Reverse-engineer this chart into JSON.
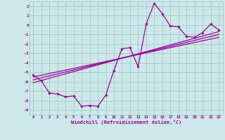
{
  "bg_color": "#cce8e8",
  "grid_color": "#aacccc",
  "line_color": "#990099",
  "marker_color": "#990099",
  "xlabel": "Windchill (Refroidissement éolien,°C)",
  "xlim": [
    -0.5,
    23.5
  ],
  "ylim": [
    -9.5,
    2.5
  ],
  "yticks": [
    2,
    1,
    0,
    -1,
    -2,
    -3,
    -4,
    -5,
    -6,
    -7,
    -8,
    -9
  ],
  "xticks": [
    0,
    1,
    2,
    3,
    4,
    5,
    6,
    7,
    8,
    9,
    10,
    11,
    12,
    13,
    14,
    15,
    16,
    17,
    18,
    19,
    20,
    21,
    22,
    23
  ],
  "data_line1_x": [
    0,
    1,
    2,
    3,
    4,
    5,
    6,
    7,
    8,
    9,
    10,
    11,
    12,
    13,
    14,
    15,
    16,
    17,
    18,
    19,
    20,
    21,
    22,
    23
  ],
  "data_line1_y": [
    -5.3,
    -5.9,
    -7.2,
    -7.3,
    -7.6,
    -7.5,
    -8.6,
    -8.5,
    -8.6,
    -7.4,
    -4.8,
    -2.5,
    -2.4,
    -4.4,
    0.1,
    2.3,
    1.2,
    -0.1,
    -0.2,
    -1.2,
    -1.3,
    -0.8,
    0.1,
    -0.5
  ],
  "data_line2_x": [
    0,
    23
  ],
  "data_line2_y": [
    -5.5,
    -1.3
  ],
  "data_line3_x": [
    0,
    23
  ],
  "data_line3_y": [
    -5.8,
    -1.0
  ],
  "data_line4_x": [
    0,
    23
  ],
  "data_line4_y": [
    -6.1,
    -0.7
  ]
}
